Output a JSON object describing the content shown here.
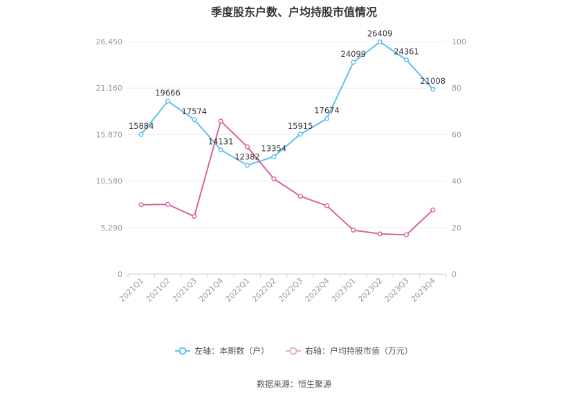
{
  "chart_data": {
    "type": "line",
    "title": "季度股东户数、户均持股市值情况",
    "categories": [
      "2021Q1",
      "2021Q2",
      "2021Q3",
      "2021Q4",
      "2022Q1",
      "2022Q2",
      "2022Q3",
      "2022Q4",
      "2023Q1",
      "2023Q2",
      "2023Q3",
      "2023Q4"
    ],
    "left_axis": {
      "ticks": [
        "0",
        "5,290",
        "10,580",
        "15,870",
        "21,160",
        "26,450"
      ],
      "ylim": [
        0,
        26450
      ]
    },
    "right_axis": {
      "ticks": [
        "0",
        "20",
        "40",
        "60",
        "80",
        "100"
      ],
      "ylim": [
        0,
        100
      ]
    },
    "series": [
      {
        "name": "左轴：本期数（户）",
        "axis": "left",
        "color": "#5bc1f0",
        "values": [
          15884,
          19666,
          17574,
          14131,
          12382,
          13354,
          15915,
          17674,
          24099,
          26409,
          24361,
          21008
        ],
        "labels": [
          "15884",
          "19666",
          "17574",
          "14131",
          "12382",
          "13354",
          "15915",
          "17674",
          "24099",
          "26409",
          "24361",
          "21008"
        ]
      },
      {
        "name": "右轴：户均持股市值（万元）",
        "axis": "right",
        "color": "#d9619f",
        "values": [
          29.8,
          30.0,
          24.8,
          65.8,
          54.7,
          41.0,
          33.5,
          29.4,
          18.9,
          17.3,
          16.9,
          27.6
        ]
      }
    ],
    "grid": true,
    "legend_position": "bottom"
  },
  "legend": {
    "left_label": "左轴：本期数（户）",
    "right_label": "右轴：户均持股市值（万元）"
  },
  "source": "数据来源：恒生聚源"
}
